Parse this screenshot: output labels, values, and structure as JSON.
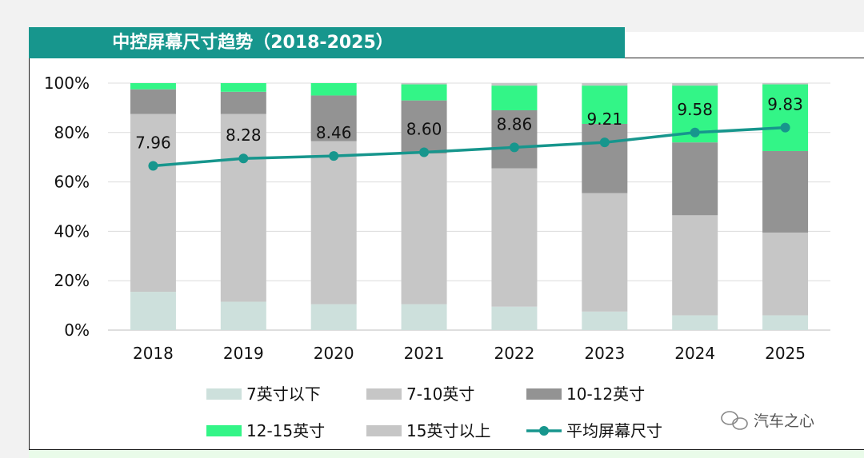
{
  "title": "中控屏幕尺寸趋势（2018-2025）",
  "watermark": "汽车之心",
  "colors": {
    "title_band": "#17968d",
    "line": "#17968d",
    "under7": "#cde0dc",
    "size7to10": "#c6c6c6",
    "size10to12": "#939393",
    "size12to15": "#33f587",
    "over15": "#c6c6c6"
  },
  "chart_data": {
    "type": "bar",
    "stacked": true,
    "categories": [
      "2018",
      "2019",
      "2020",
      "2021",
      "2022",
      "2023",
      "2024",
      "2025"
    ],
    "ylim": [
      0,
      100
    ],
    "yticks": [
      "0%",
      "20%",
      "40%",
      "60%",
      "80%",
      "100%"
    ],
    "grid": true,
    "legend_position": "bottom",
    "series": [
      {
        "name": "7英寸以下",
        "values": [
          15.5,
          11.5,
          10.5,
          10.5,
          9.5,
          7.5,
          6,
          6
        ]
      },
      {
        "name": "7-10英寸",
        "values": [
          72,
          76,
          66,
          61,
          56,
          48,
          40.5,
          33.5
        ]
      },
      {
        "name": "10-12英寸",
        "values": [
          10,
          9,
          18.5,
          21.5,
          23.5,
          28,
          29.5,
          33
        ]
      },
      {
        "name": "12-15英寸",
        "values": [
          2.5,
          3.5,
          5,
          6.5,
          10,
          15.5,
          23,
          27
        ]
      },
      {
        "name": "15英寸以上",
        "values": [
          0,
          0,
          0,
          0.5,
          1,
          1,
          1,
          0.5
        ]
      }
    ],
    "line_series": {
      "name": "平均屏幕尺寸",
      "values": [
        7.96,
        8.28,
        8.46,
        8.6,
        8.86,
        9.21,
        9.58,
        9.83
      ],
      "labels": [
        "7.96",
        "8.28",
        "8.46",
        "8.60",
        "8.86",
        "9.21",
        "9.58",
        "9.83"
      ],
      "plot_positions_pct": [
        66.5,
        69.5,
        70.5,
        72,
        74,
        76,
        80,
        82
      ]
    }
  }
}
